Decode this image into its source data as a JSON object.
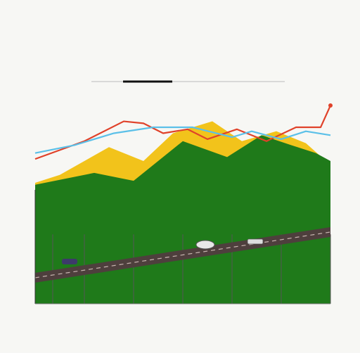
{
  "header": {
    "title": "",
    "subtitle": ""
  },
  "colors": {
    "background": "#f7f7f4",
    "mountain_green": "#1f7a1a",
    "mountain_yellow": "#f2c31b",
    "line_red": "#e0422a",
    "line_blue": "#5bc0e8",
    "road": "#5a4a48"
  },
  "chart_data": {
    "type": "area",
    "title": "",
    "xlabel": "",
    "ylabel": "",
    "x": [
      0,
      1,
      2,
      3,
      4,
      5,
      6
    ],
    "ylim": [
      0,
      10
    ],
    "grid": false,
    "legend": "none",
    "series": [
      {
        "name": "",
        "kind": "area",
        "color": "#f2c31b",
        "x": [
          0,
          0.5,
          1.5,
          2.2,
          2.8,
          3.6,
          4.2,
          4.9,
          5.5,
          6
        ],
        "y": [
          6.1,
          6.5,
          7.9,
          7.2,
          8.6,
          9.2,
          8.2,
          8.7,
          8.1,
          7.0
        ]
      },
      {
        "name": "",
        "kind": "area",
        "color": "#1f7a1a",
        "x": [
          0,
          1.2,
          2.0,
          3.0,
          3.9,
          4.6,
          5.2,
          5.7,
          6
        ],
        "y": [
          6.0,
          6.6,
          6.2,
          8.2,
          7.4,
          8.5,
          8.0,
          7.6,
          7.2
        ]
      },
      {
        "name": "",
        "kind": "line",
        "color": "#e0422a",
        "x": [
          0,
          1.0,
          1.8,
          2.2,
          2.6,
          3.1,
          3.5,
          4.1,
          4.7,
          5.3,
          5.8,
          6
        ],
        "y": [
          7.3,
          8.2,
          9.2,
          9.1,
          8.6,
          8.8,
          8.3,
          8.8,
          8.2,
          8.9,
          8.9,
          10.0
        ]
      },
      {
        "name": "",
        "kind": "line",
        "color": "#5bc0e8",
        "x": [
          0,
          0.8,
          1.6,
          2.4,
          3.2,
          4.0,
          4.4,
          5.0,
          5.5,
          6
        ],
        "y": [
          7.6,
          8.0,
          8.6,
          8.9,
          8.9,
          8.4,
          8.7,
          8.3,
          8.7,
          8.5
        ]
      }
    ]
  }
}
